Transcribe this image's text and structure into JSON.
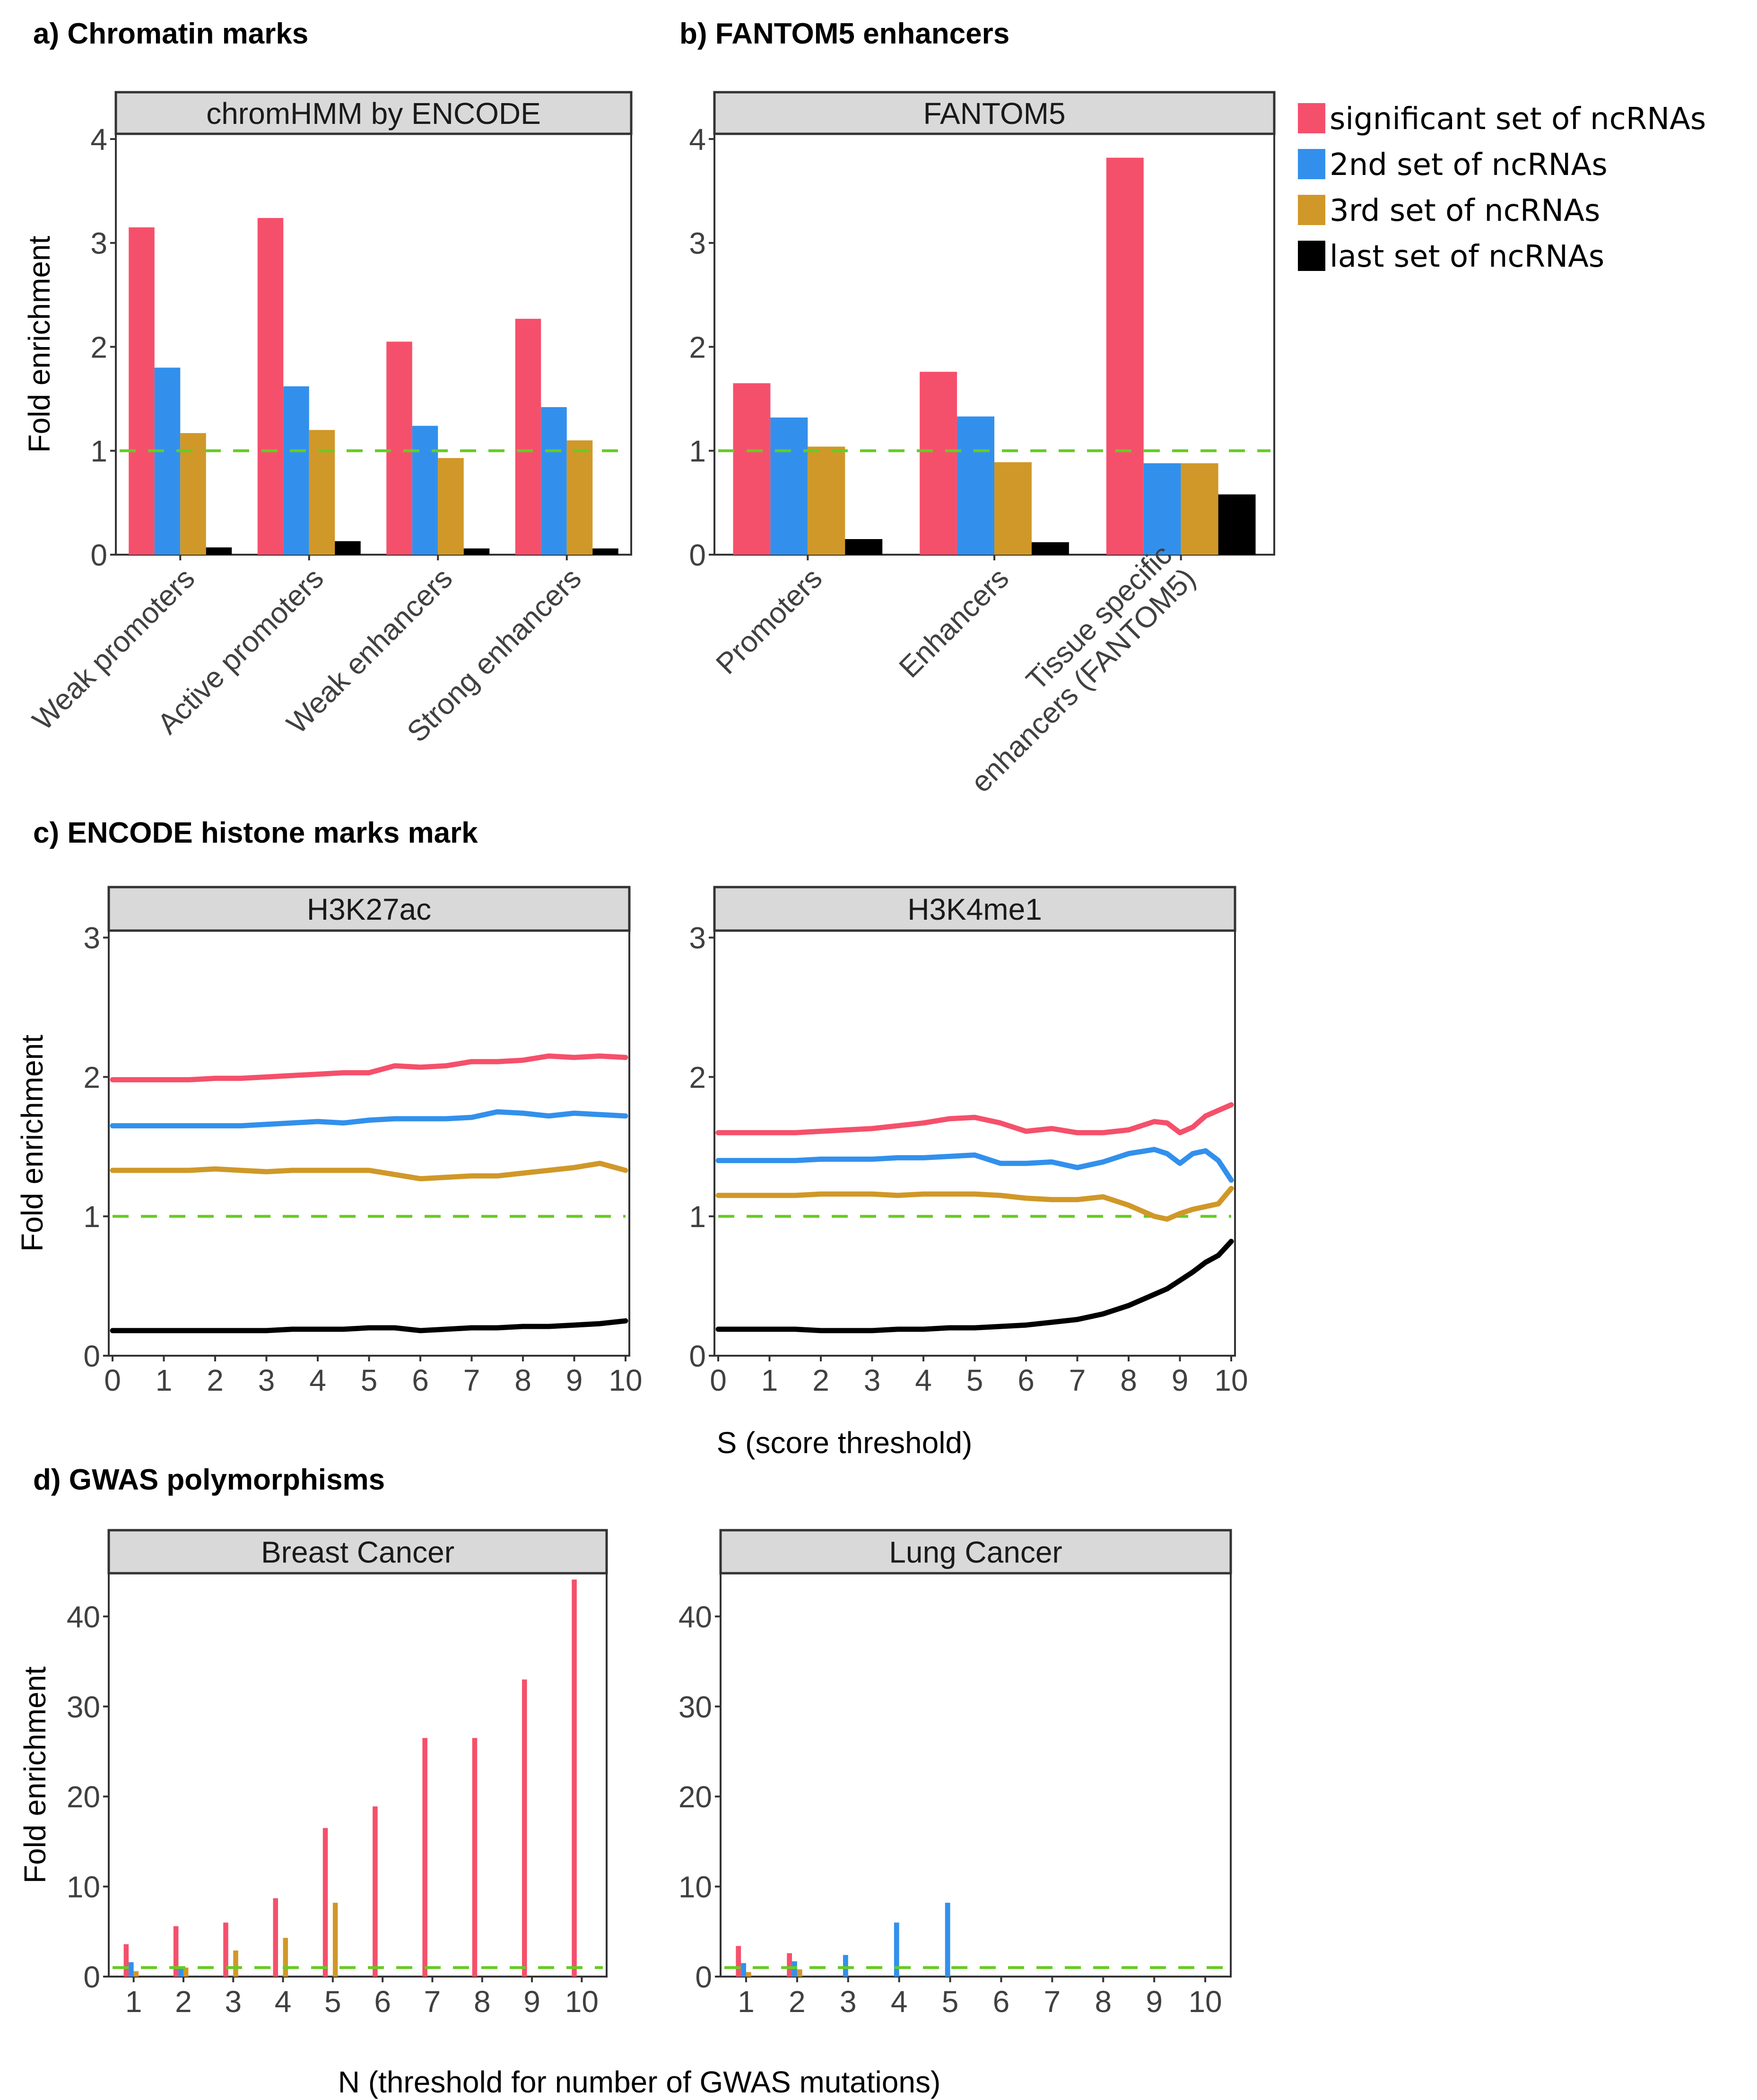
{
  "figure": {
    "panel_titles": {
      "a": "a) Chromatin marks",
      "b": "b) FANTOM5 enhancers",
      "c": "c) ENCODE histone marks mark",
      "d": "d) GWAS polymorphisms"
    },
    "colors": {
      "significant": "#F5506B",
      "second": "#3290EC",
      "third": "#D09828",
      "last": "#000000",
      "reference_line": "#66CC22",
      "strip_bg": "#D9D9D9"
    },
    "reference_value": 1
  },
  "legend": {
    "items": [
      {
        "label": "significant set of ncRNAs",
        "color": "#F5506B"
      },
      {
        "label": "2nd set of ncRNAs",
        "color": "#3290EC"
      },
      {
        "label": "3rd set of ncRNAs",
        "color": "#D09828"
      },
      {
        "label": "last set of ncRNAs",
        "color": "#000000"
      }
    ]
  },
  "chart_data": [
    {
      "id": "a",
      "type": "bar",
      "title": "a) Chromatin marks",
      "facet": "chromHMM by ENCODE",
      "xlabel": "",
      "ylabel": "Fold enrichment",
      "ylim": [
        0,
        4
      ],
      "yticks": [
        0,
        1,
        2,
        3,
        4
      ],
      "grid": false,
      "categories": [
        "Weak promoters",
        "Active promoters",
        "Weak enhancers",
        "Strong enhancers"
      ],
      "series": [
        {
          "name": "significant set of ncRNAs",
          "values": [
            3.15,
            3.24,
            2.05,
            2.27
          ]
        },
        {
          "name": "2nd set of ncRNAs",
          "values": [
            1.8,
            1.62,
            1.24,
            1.42
          ]
        },
        {
          "name": "3rd set of ncRNAs",
          "values": [
            1.17,
            1.2,
            0.93,
            1.1
          ]
        },
        {
          "name": "last set of ncRNAs",
          "values": [
            0.07,
            0.13,
            0.06,
            0.06
          ]
        }
      ],
      "hline": 1
    },
    {
      "id": "b",
      "type": "bar",
      "title": "b) FANTOM5 enhancers",
      "facet": "FANTOM5",
      "xlabel": "",
      "ylabel": "",
      "ylim": [
        0,
        4
      ],
      "yticks": [
        0,
        1,
        2,
        3,
        4
      ],
      "grid": false,
      "categories": [
        "Promoters",
        "Enhancers",
        "Tissue specific\nenhancers (FANTOM5)"
      ],
      "series": [
        {
          "name": "significant set of ncRNAs",
          "values": [
            1.65,
            1.76,
            3.82
          ]
        },
        {
          "name": "2nd set of ncRNAs",
          "values": [
            1.32,
            1.33,
            0.88
          ]
        },
        {
          "name": "3rd set of ncRNAs",
          "values": [
            1.04,
            0.89,
            0.88
          ]
        },
        {
          "name": "last set of ncRNAs",
          "values": [
            0.15,
            0.12,
            0.58
          ]
        }
      ],
      "hline": 1,
      "legend": "right"
    },
    {
      "id": "c1",
      "type": "line",
      "title": "c) ENCODE histone marks mark",
      "facet": "H3K27ac",
      "xlabel": "",
      "ylabel": "Fold enrichment",
      "xlim": [
        0,
        10
      ],
      "ylim": [
        0,
        3
      ],
      "xticks": [
        0,
        1,
        2,
        3,
        4,
        5,
        6,
        7,
        8,
        9,
        10
      ],
      "yticks": [
        0,
        1,
        2,
        3
      ],
      "grid": false,
      "x": [
        0,
        0.5,
        1,
        1.5,
        2,
        2.5,
        3,
        3.5,
        4,
        4.5,
        5,
        5.5,
        6,
        6.5,
        7,
        7.5,
        8,
        8.5,
        9,
        9.5,
        10
      ],
      "series": [
        {
          "name": "significant set of ncRNAs",
          "values": [
            1.98,
            1.98,
            1.98,
            1.98,
            1.99,
            1.99,
            2.0,
            2.01,
            2.02,
            2.03,
            2.03,
            2.08,
            2.07,
            2.08,
            2.11,
            2.11,
            2.12,
            2.15,
            2.14,
            2.15,
            2.14
          ]
        },
        {
          "name": "2nd set of ncRNAs",
          "values": [
            1.65,
            1.65,
            1.65,
            1.65,
            1.65,
            1.65,
            1.66,
            1.67,
            1.68,
            1.67,
            1.69,
            1.7,
            1.7,
            1.7,
            1.71,
            1.75,
            1.74,
            1.72,
            1.74,
            1.73,
            1.72
          ]
        },
        {
          "name": "3rd set of ncRNAs",
          "values": [
            1.33,
            1.33,
            1.33,
            1.33,
            1.34,
            1.33,
            1.32,
            1.33,
            1.33,
            1.33,
            1.33,
            1.3,
            1.27,
            1.28,
            1.29,
            1.29,
            1.31,
            1.33,
            1.35,
            1.38,
            1.33
          ]
        },
        {
          "name": "last set of ncRNAs",
          "values": [
            0.18,
            0.18,
            0.18,
            0.18,
            0.18,
            0.18,
            0.18,
            0.19,
            0.19,
            0.19,
            0.2,
            0.2,
            0.18,
            0.19,
            0.2,
            0.2,
            0.21,
            0.21,
            0.22,
            0.23,
            0.25
          ]
        }
      ],
      "hline": 1
    },
    {
      "id": "c2",
      "type": "line",
      "facet": "H3K4me1",
      "xlabel": "S (score threshold)",
      "ylabel": "",
      "xlim": [
        0,
        10
      ],
      "ylim": [
        0,
        3
      ],
      "xticks": [
        0,
        1,
        2,
        3,
        4,
        5,
        6,
        7,
        8,
        9,
        10
      ],
      "yticks": [
        0,
        1,
        2,
        3
      ],
      "grid": false,
      "x": [
        0,
        0.5,
        1,
        1.5,
        2,
        2.5,
        3,
        3.5,
        4,
        4.5,
        5,
        5.5,
        6,
        6.5,
        7,
        7.5,
        8,
        8.5,
        8.75,
        9,
        9.25,
        9.5,
        9.75,
        10
      ],
      "series": [
        {
          "name": "significant set of ncRNAs",
          "values": [
            1.6,
            1.6,
            1.6,
            1.6,
            1.61,
            1.62,
            1.63,
            1.65,
            1.67,
            1.7,
            1.71,
            1.67,
            1.61,
            1.63,
            1.6,
            1.6,
            1.62,
            1.68,
            1.67,
            1.6,
            1.64,
            1.72,
            1.76,
            1.8
          ]
        },
        {
          "name": "2nd set of ncRNAs",
          "values": [
            1.4,
            1.4,
            1.4,
            1.4,
            1.41,
            1.41,
            1.41,
            1.42,
            1.42,
            1.43,
            1.44,
            1.38,
            1.38,
            1.39,
            1.35,
            1.39,
            1.45,
            1.48,
            1.45,
            1.38,
            1.45,
            1.47,
            1.4,
            1.26
          ]
        },
        {
          "name": "3rd set of ncRNAs",
          "values": [
            1.15,
            1.15,
            1.15,
            1.15,
            1.16,
            1.16,
            1.16,
            1.15,
            1.16,
            1.16,
            1.16,
            1.15,
            1.13,
            1.12,
            1.12,
            1.14,
            1.08,
            1.0,
            0.98,
            1.02,
            1.05,
            1.07,
            1.09,
            1.2
          ]
        },
        {
          "name": "last set of ncRNAs",
          "values": [
            0.19,
            0.19,
            0.19,
            0.19,
            0.18,
            0.18,
            0.18,
            0.19,
            0.19,
            0.2,
            0.2,
            0.21,
            0.22,
            0.24,
            0.26,
            0.3,
            0.36,
            0.44,
            0.48,
            0.54,
            0.6,
            0.67,
            0.72,
            0.82
          ]
        }
      ],
      "hline": 1
    },
    {
      "id": "d1",
      "type": "bar",
      "title": "d) GWAS polymorphisms",
      "facet": "Breast Cancer",
      "xlabel": "N (threshold for number of GWAS mutations)",
      "ylabel": "Fold enrichment",
      "ylim": [
        0,
        45
      ],
      "yticks": [
        0,
        10,
        20,
        30,
        40
      ],
      "grid": false,
      "categories": [
        "1",
        "2",
        "3",
        "4",
        "5",
        "6",
        "7",
        "8",
        "9",
        "10"
      ],
      "series": [
        {
          "name": "significant set of ncRNAs",
          "values": [
            3.6,
            5.6,
            6.0,
            8.7,
            16.5,
            18.9,
            26.5,
            26.5,
            33.0,
            44.1
          ]
        },
        {
          "name": "2nd set of ncRNAs",
          "values": [
            1.6,
            1.0,
            0,
            0,
            0,
            0,
            0,
            0,
            0,
            0
          ]
        },
        {
          "name": "3rd set of ncRNAs",
          "values": [
            0.6,
            1.0,
            2.9,
            4.3,
            8.2,
            0,
            0,
            0,
            0,
            0
          ]
        },
        {
          "name": "last set of ncRNAs",
          "values": [
            0,
            0,
            0,
            0,
            0,
            0,
            0,
            0,
            0,
            0
          ]
        }
      ],
      "hline": 1
    },
    {
      "id": "d2",
      "type": "bar",
      "facet": "Lung Cancer",
      "xlabel": "",
      "ylabel": "",
      "ylim": [
        0,
        45
      ],
      "yticks": [
        0,
        10,
        20,
        30,
        40
      ],
      "grid": false,
      "categories": [
        "1",
        "2",
        "3",
        "4",
        "5",
        "6",
        "7",
        "8",
        "9",
        "10"
      ],
      "series": [
        {
          "name": "significant set of ncRNAs",
          "values": [
            3.4,
            2.6,
            0,
            0,
            0,
            0,
            0,
            0,
            0,
            0
          ]
        },
        {
          "name": "2nd set of ncRNAs",
          "values": [
            1.5,
            1.7,
            2.4,
            6.0,
            8.2,
            0,
            0,
            0,
            0,
            0
          ]
        },
        {
          "name": "3rd set of ncRNAs",
          "values": [
            0.5,
            0.8,
            0,
            0,
            0,
            0,
            0,
            0,
            0,
            0
          ]
        },
        {
          "name": "last set of ncRNAs",
          "values": [
            0,
            0,
            0,
            0,
            0,
            0,
            0,
            0,
            0,
            0
          ]
        }
      ],
      "hline": 1
    }
  ]
}
